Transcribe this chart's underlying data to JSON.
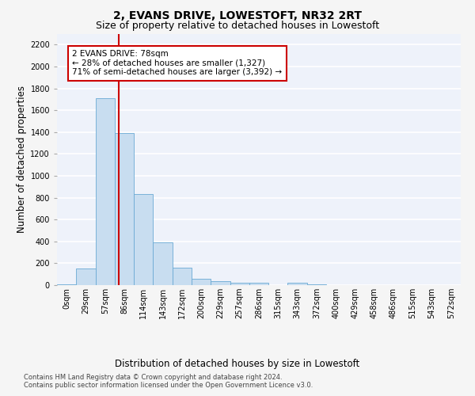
{
  "title": "2, EVANS DRIVE, LOWESTOFT, NR32 2RT",
  "subtitle": "Size of property relative to detached houses in Lowestoft",
  "xlabel": "Distribution of detached houses by size in Lowestoft",
  "ylabel": "Number of detached properties",
  "categories": [
    "0sqm",
    "29sqm",
    "57sqm",
    "86sqm",
    "114sqm",
    "143sqm",
    "172sqm",
    "200sqm",
    "229sqm",
    "257sqm",
    "286sqm",
    "315sqm",
    "343sqm",
    "372sqm",
    "400sqm",
    "429sqm",
    "458sqm",
    "486sqm",
    "515sqm",
    "543sqm",
    "572sqm"
  ],
  "values": [
    10,
    155,
    1710,
    1390,
    830,
    390,
    160,
    60,
    35,
    25,
    25,
    0,
    20,
    10,
    0,
    0,
    0,
    0,
    0,
    0,
    0
  ],
  "bar_color": "#c8ddf0",
  "bar_edge_color": "#6aaad4",
  "background_color": "#eef2fa",
  "grid_color": "#ffffff",
  "vline_bin": 2.5,
  "vline_color": "#cc0000",
  "annotation_text": "2 EVANS DRIVE: 78sqm\n← 28% of detached houses are smaller (1,327)\n71% of semi-detached houses are larger (3,392) →",
  "annotation_box_color": "#ffffff",
  "annotation_box_edge_color": "#cc0000",
  "ylim": [
    0,
    2300
  ],
  "yticks": [
    0,
    200,
    400,
    600,
    800,
    1000,
    1200,
    1400,
    1600,
    1800,
    2000,
    2200
  ],
  "footer_line1": "Contains HM Land Registry data © Crown copyright and database right 2024.",
  "footer_line2": "Contains public sector information licensed under the Open Government Licence v3.0.",
  "title_fontsize": 10,
  "subtitle_fontsize": 9,
  "tick_fontsize": 7,
  "ylabel_fontsize": 8.5,
  "xlabel_fontsize": 8.5,
  "annotation_fontsize": 7.5,
  "footer_fontsize": 6
}
